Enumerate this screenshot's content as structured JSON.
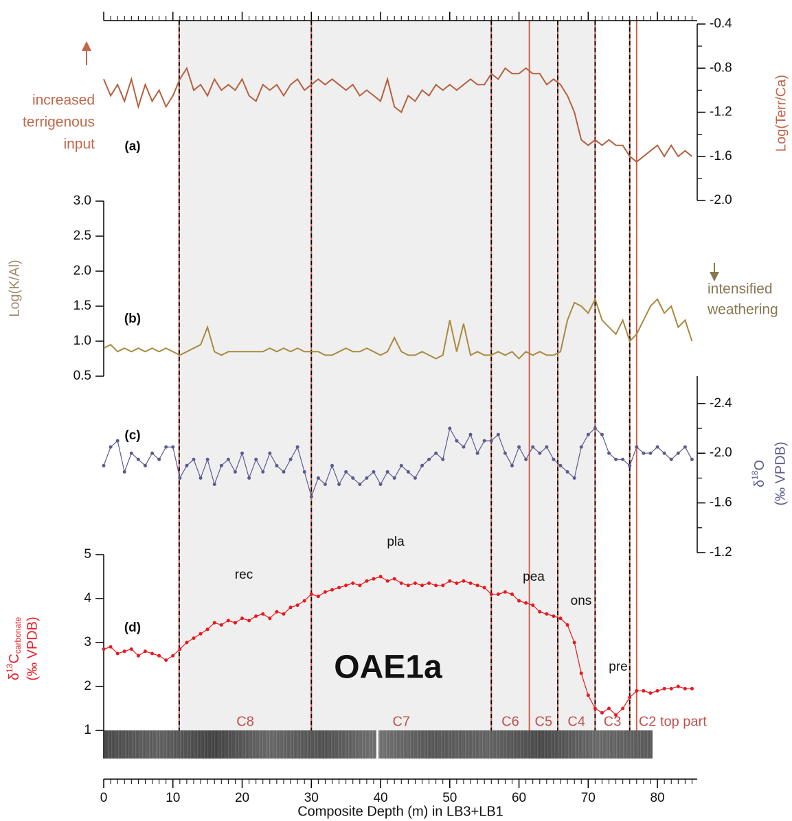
{
  "chart_data": [
    {
      "type": "line",
      "label": "(a)",
      "color": "#b5603f",
      "axis_color": "#c0664a",
      "side": "right",
      "y_label": "Log(Terr/Ca)",
      "annotation": [
        "increased",
        "terrigenous",
        "input"
      ],
      "ylim": [
        -2.0,
        -0.4
      ],
      "yticks": [
        -0.4,
        -0.8,
        -1.2,
        -1.6,
        {
          "value": -2.0,
          "label": "-2.0"
        }
      ],
      "x": [
        0,
        1,
        2,
        3,
        4,
        5,
        6,
        7,
        8,
        9,
        10,
        11,
        12,
        13,
        14,
        15,
        16,
        17,
        18,
        19,
        20,
        21,
        22,
        23,
        24,
        25,
        26,
        27,
        28,
        29,
        30,
        31,
        32,
        33,
        34,
        35,
        36,
        37,
        38,
        39,
        40,
        41,
        42,
        43,
        44,
        45,
        46,
        47,
        48,
        49,
        50,
        51,
        52,
        53,
        54,
        55,
        56,
        57,
        58,
        59,
        60,
        61,
        62,
        63,
        64,
        65,
        66,
        67,
        68,
        69,
        70,
        71,
        72,
        73,
        74,
        75,
        76,
        77,
        78,
        79,
        80,
        81,
        82,
        83,
        84,
        85
      ],
      "values": [
        -0.9,
        -1.05,
        -0.95,
        -1.1,
        -0.9,
        -1.15,
        -0.95,
        -1.1,
        -1.0,
        -1.15,
        -1.05,
        -0.9,
        -0.8,
        -1.0,
        -0.95,
        -1.05,
        -0.9,
        -1.0,
        -0.95,
        -1.0,
        -0.9,
        -1.05,
        -1.1,
        -0.95,
        -1.0,
        -0.95,
        -1.05,
        -0.95,
        -0.9,
        -1.0,
        -0.95,
        -0.9,
        -0.95,
        -0.9,
        -0.95,
        -1.0,
        -0.95,
        -1.05,
        -1.0,
        -1.05,
        -1.1,
        -0.9,
        -1.15,
        -1.2,
        -1.05,
        -1.1,
        -1.0,
        -1.05,
        -0.95,
        -1.0,
        -0.95,
        -1.0,
        -0.95,
        -0.9,
        -0.95,
        -0.95,
        -0.85,
        -0.9,
        -0.8,
        -0.85,
        -0.85,
        -0.8,
        -0.85,
        -0.85,
        -0.95,
        -0.9,
        -0.95,
        -1.05,
        -1.2,
        -1.45,
        -1.5,
        -1.45,
        -1.5,
        -1.45,
        -1.5,
        -1.5,
        -1.6,
        -1.65,
        -1.6,
        -1.55,
        -1.5,
        -1.6,
        -1.5,
        -1.6,
        -1.55,
        -1.6
      ]
    },
    {
      "type": "line",
      "label": "(b)",
      "color": "#a88a3e",
      "axis_color": "#a08a68",
      "side": "left",
      "y_label": "Log(K/Al)",
      "annotation": [
        "intensified",
        "weathering"
      ],
      "ylim": [
        0.5,
        3.0
      ],
      "yticks": [
        0.5,
        {
          "value": 1.0,
          "label": "1.0"
        },
        1.5,
        {
          "value": 2.0,
          "label": "2.0"
        },
        2.5,
        {
          "value": 3.0,
          "label": "3.0"
        }
      ],
      "x": [
        0,
        1,
        2,
        3,
        4,
        5,
        6,
        7,
        8,
        9,
        10,
        11,
        12,
        13,
        14,
        15,
        16,
        17,
        18,
        19,
        20,
        21,
        22,
        23,
        24,
        25,
        26,
        27,
        28,
        29,
        30,
        31,
        32,
        33,
        34,
        35,
        36,
        37,
        38,
        39,
        40,
        41,
        42,
        43,
        44,
        45,
        46,
        47,
        48,
        49,
        50,
        51,
        52,
        53,
        54,
        55,
        56,
        57,
        58,
        59,
        60,
        61,
        62,
        63,
        64,
        65,
        66,
        67,
        68,
        69,
        70,
        71,
        72,
        73,
        74,
        75,
        76,
        77,
        78,
        79,
        80,
        81,
        82,
        83,
        84,
        85
      ],
      "values": [
        0.9,
        0.95,
        0.85,
        0.9,
        0.85,
        0.9,
        0.85,
        0.9,
        0.85,
        0.9,
        0.85,
        0.8,
        0.85,
        0.9,
        0.95,
        1.2,
        0.85,
        0.8,
        0.85,
        0.85,
        0.85,
        0.85,
        0.85,
        0.85,
        0.9,
        0.85,
        0.9,
        0.85,
        0.9,
        0.85,
        0.85,
        0.85,
        0.8,
        0.8,
        0.85,
        0.9,
        0.85,
        0.85,
        0.9,
        0.85,
        0.8,
        0.85,
        1.05,
        0.85,
        0.8,
        0.8,
        0.85,
        0.8,
        0.75,
        0.8,
        1.3,
        0.85,
        1.25,
        0.8,
        0.85,
        0.8,
        0.8,
        0.85,
        0.8,
        0.85,
        0.75,
        0.85,
        0.8,
        0.85,
        0.8,
        0.8,
        0.85,
        1.3,
        1.55,
        1.5,
        1.4,
        1.6,
        1.3,
        1.2,
        1.1,
        1.3,
        1.0,
        1.1,
        1.3,
        1.5,
        1.6,
        1.4,
        1.5,
        1.2,
        1.3,
        1.0
      ]
    },
    {
      "type": "line",
      "label": "(c)",
      "color": "#5b5b8f",
      "axis_color": "#5b5b8f",
      "side": "right",
      "markers": true,
      "y_label": {
        "main": "δ",
        "sup": "18",
        "rest": "O",
        "line2": "(‰ VPDB)"
      },
      "ylim": [
        -1.2,
        -2.62
      ],
      "yticks": [
        -2.4,
        {
          "value": -2.0,
          "label": "-2.0"
        },
        -1.6,
        -1.2
      ],
      "x": [
        0,
        1,
        2,
        3,
        4,
        5,
        6,
        7,
        8,
        9,
        10,
        11,
        12,
        13,
        14,
        15,
        16,
        17,
        18,
        19,
        20,
        21,
        22,
        23,
        24,
        25,
        26,
        27,
        28,
        29,
        30,
        31,
        32,
        33,
        34,
        35,
        36,
        37,
        38,
        39,
        40,
        41,
        42,
        43,
        44,
        45,
        46,
        47,
        48,
        49,
        50,
        51,
        52,
        53,
        54,
        55,
        56,
        57,
        58,
        59,
        60,
        61,
        62,
        63,
        64,
        65,
        66,
        67,
        68,
        69,
        70,
        71,
        72,
        73,
        74,
        75,
        76,
        77,
        78,
        79,
        80,
        81,
        82,
        83,
        84,
        85
      ],
      "values": [
        -1.9,
        -2.05,
        -2.1,
        -1.85,
        -2.0,
        -1.95,
        -1.9,
        -2.0,
        -1.95,
        -2.05,
        -2.05,
        -1.8,
        -1.9,
        -1.95,
        -1.8,
        -1.95,
        -1.75,
        -1.9,
        -1.95,
        -1.85,
        -2.0,
        -1.8,
        -1.95,
        -1.85,
        -2.0,
        -1.9,
        -1.85,
        -1.95,
        -2.05,
        -1.85,
        -1.65,
        -1.8,
        -1.75,
        -1.9,
        -1.75,
        -1.85,
        -1.8,
        -1.75,
        -1.8,
        -1.85,
        -1.75,
        -1.85,
        -1.8,
        -1.9,
        -1.85,
        -1.8,
        -1.9,
        -1.95,
        -2.0,
        -1.95,
        -2.2,
        -2.1,
        -2.05,
        -2.15,
        -2.0,
        -2.1,
        -2.1,
        -2.15,
        -2.0,
        -1.9,
        -2.05,
        -1.95,
        -2.05,
        -2.0,
        -2.05,
        -1.95,
        -1.9,
        -1.85,
        -1.8,
        -2.05,
        -2.15,
        -2.2,
        -2.15,
        -2.0,
        -1.95,
        -1.95,
        -1.9,
        -2.05,
        -2.0,
        -2.0,
        -2.05,
        -2.0,
        -1.95,
        -2.0,
        -2.05,
        -1.95
      ]
    },
    {
      "type": "line",
      "label": "(d)",
      "color": "#e8191e",
      "axis_color": "#ee1c24",
      "side": "left",
      "markers": true,
      "y_label": {
        "main": "δ",
        "sup": "13",
        "rest": "C",
        "sub": "carbonate",
        "line2": "(‰ VPDB)"
      },
      "ylim": [
        1,
        5
      ],
      "yticks": [
        1,
        2,
        3,
        4,
        5
      ],
      "x_label": "Composite Depth (m) in LB3+LB1",
      "xlim": [
        0,
        85.75
      ],
      "xticks": [
        0,
        10,
        20,
        30,
        40,
        50,
        60,
        70,
        80
      ],
      "x": [
        0,
        1,
        2,
        3,
        4,
        5,
        6,
        7,
        8,
        9,
        10,
        11,
        12,
        13,
        14,
        15,
        16,
        17,
        18,
        19,
        20,
        21,
        22,
        23,
        24,
        25,
        26,
        27,
        28,
        29,
        30,
        31,
        32,
        33,
        34,
        35,
        36,
        37,
        38,
        39,
        40,
        41,
        42,
        43,
        44,
        45,
        46,
        47,
        48,
        49,
        50,
        51,
        52,
        53,
        54,
        55,
        56,
        57,
        58,
        59,
        60,
        61,
        62,
        63,
        64,
        65,
        66,
        67,
        68,
        69,
        70,
        71,
        72,
        73,
        74,
        75,
        76,
        77,
        78,
        79,
        80,
        81,
        82,
        83,
        84,
        85
      ],
      "values": [
        2.85,
        2.9,
        2.75,
        2.8,
        2.85,
        2.7,
        2.8,
        2.75,
        2.7,
        2.6,
        2.7,
        2.85,
        3.0,
        3.1,
        3.2,
        3.3,
        3.45,
        3.4,
        3.5,
        3.45,
        3.55,
        3.5,
        3.6,
        3.65,
        3.55,
        3.7,
        3.65,
        3.8,
        3.85,
        3.95,
        4.1,
        4.05,
        4.15,
        4.2,
        4.25,
        4.3,
        4.35,
        4.3,
        4.4,
        4.45,
        4.5,
        4.4,
        4.45,
        4.35,
        4.3,
        4.35,
        4.3,
        4.35,
        4.3,
        4.3,
        4.4,
        4.35,
        4.4,
        4.35,
        4.3,
        4.25,
        4.1,
        4.1,
        4.15,
        4.1,
        3.95,
        3.9,
        3.85,
        3.7,
        3.65,
        3.6,
        3.55,
        3.4,
        3.0,
        2.3,
        1.8,
        1.5,
        1.4,
        1.5,
        1.35,
        1.5,
        1.75,
        1.9,
        1.9,
        1.85,
        1.9,
        1.95,
        1.95,
        2.0,
        1.95,
        1.95
      ]
    }
  ],
  "overlay": {
    "title": "OAE1a",
    "shaded": [
      10.9,
      71
    ],
    "boundaries": [
      {
        "depth": 10.9,
        "style": "dashed"
      },
      {
        "depth": 30,
        "style": "dashed"
      },
      {
        "depth": 56,
        "style": "dashed"
      },
      {
        "depth": 61.5,
        "style": "solid"
      },
      {
        "depth": 65.6,
        "style": "dashed"
      },
      {
        "depth": 71,
        "style": "dashed"
      },
      {
        "depth": 76,
        "style": "dashed"
      },
      {
        "depth": 77,
        "style": "solid"
      }
    ],
    "zones": [
      {
        "label": "C8",
        "start": 10.9,
        "end": 30
      },
      {
        "label": "C7",
        "start": 30,
        "end": 56
      },
      {
        "label": "C6",
        "start": 56,
        "end": 61.5
      },
      {
        "label": "C5",
        "start": 61.5,
        "end": 65.6
      },
      {
        "label": "C4",
        "start": 65.6,
        "end": 71
      },
      {
        "label": "C3",
        "start": 71,
        "end": 76
      },
      {
        "label": "C2 top part",
        "start": 77
      }
    ],
    "phases": [
      "rec",
      "pla",
      "pea",
      "ons",
      "pre"
    ]
  }
}
